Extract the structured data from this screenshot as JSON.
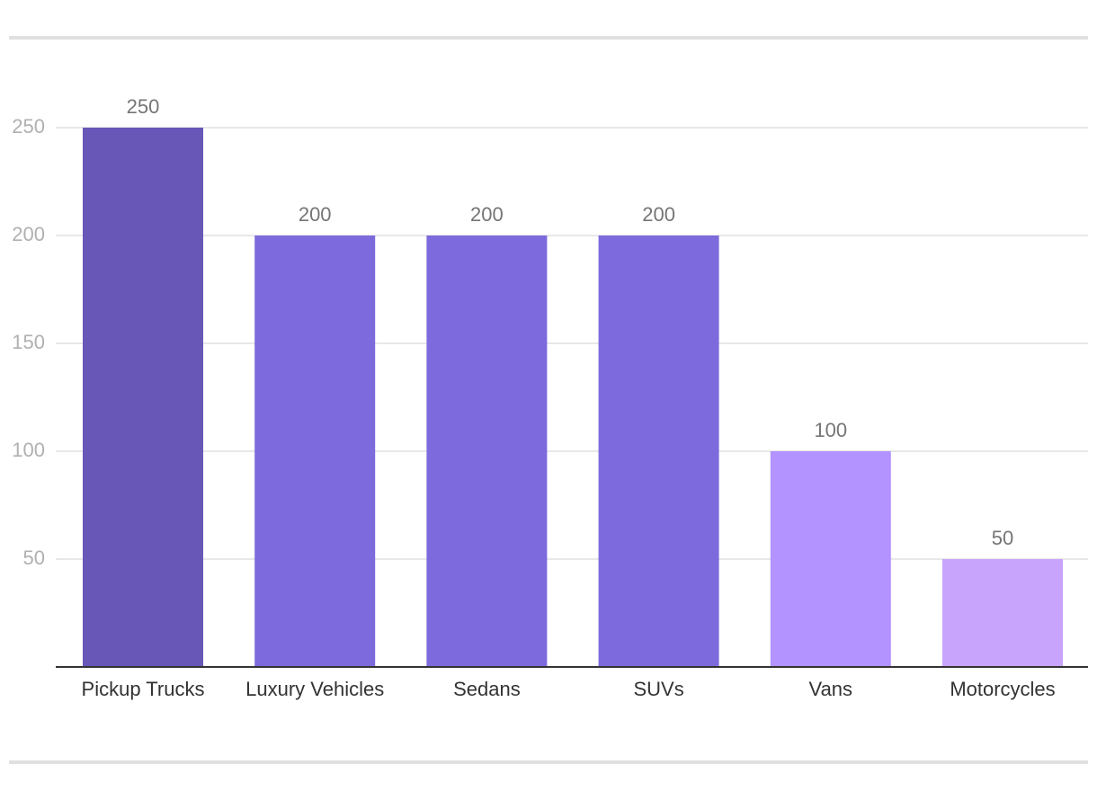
{
  "chart_data": {
    "type": "bar",
    "title": "",
    "xlabel": "",
    "ylabel": "",
    "categories": [
      "Pickup Trucks",
      "Luxury Vehicles",
      "Sedans",
      "SUVs",
      "Vans",
      "Motorcycles"
    ],
    "values": [
      250,
      200,
      200,
      200,
      100,
      50
    ],
    "ylim": [
      0,
      250
    ],
    "yticks": [
      50,
      100,
      150,
      200,
      250
    ],
    "data_labels": [
      "250",
      "200",
      "200",
      "200",
      "100",
      "50"
    ],
    "grid": true,
    "legend": "none",
    "colors": {
      "bars": [
        "#6957b8",
        "#7d6add",
        "#7d6add",
        "#7d6add",
        "#b293ff",
        "#c8a4fd"
      ],
      "gridline": "#e0e0e0",
      "axis": "#333333",
      "frame": "#e0e0e0",
      "tick_text": "#b0b0b0",
      "category_text": "#333333",
      "value_text": "#757575"
    }
  }
}
